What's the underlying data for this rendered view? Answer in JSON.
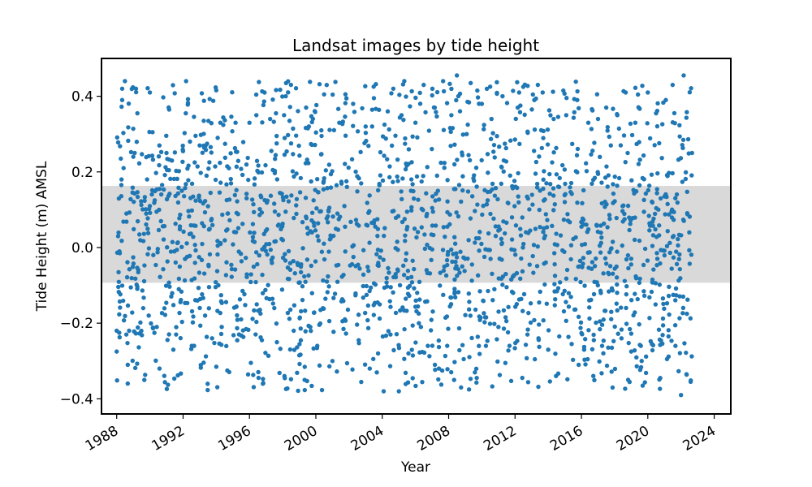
{
  "chart_data": {
    "type": "scatter",
    "title": "Landsat images by tide height",
    "xlabel": "Year",
    "ylabel": "Tide Height (m) AMSL",
    "xlim": [
      "1987-02-01",
      "2025-01-01"
    ],
    "ylim": [
      -0.44,
      0.5
    ],
    "x_ticks": [
      "1988",
      "1992",
      "1996",
      "2000",
      "2004",
      "2008",
      "2012",
      "2016",
      "2020",
      "2024"
    ],
    "y_ticks": [
      "−0.4",
      "−0.2",
      "0.0",
      "0.2",
      "0.4"
    ],
    "shaded_band": {
      "y_min": -0.093,
      "y_max": 0.163,
      "color": "#d9d9d9"
    },
    "series_color": "#1f77b4",
    "grid": false,
    "legend": "none",
    "date_range": [
      "1988-01-01",
      "2022-09-01"
    ],
    "series": [
      {
        "points": [
          [
            "1988-01-01",
            -0.22
          ],
          [
            "1988-01-01",
            -0.275
          ],
          [
            "1988-02-01",
            0.03
          ],
          [
            "1988-03-01",
            -0.01
          ],
          [
            "1988-04-01",
            0.235
          ],
          [
            "1988-05-01",
            0.42
          ],
          [
            "1988-05-01",
            0.39
          ],
          [
            "1988-06-01",
            0.21
          ],
          [
            "1988-07-01",
            0.44
          ],
          [
            "1988-08-01",
            -0.23
          ],
          [
            "1988-09-01",
            -0.31
          ],
          [
            "1988-10-01",
            -0.22
          ],
          [
            "1989-01-01",
            0.24
          ],
          [
            "1989-02-01",
            0.25
          ],
          [
            "1989-03-01",
            0.42
          ],
          [
            "1989-04-01",
            0.355
          ],
          [
            "1989-09-01",
            -0.35
          ],
          [
            "1989-11-01",
            0.18
          ],
          [
            "1990-01-01",
            0.41
          ],
          [
            "1990-03-01",
            0.305
          ],
          [
            "1990-06-01",
            -0.21
          ],
          [
            "1990-08-01",
            -0.32
          ],
          [
            "1991-01-01",
            0.25
          ],
          [
            "1991-03-01",
            0.365
          ],
          [
            "1991-05-01",
            0.23
          ],
          [
            "1991-06-01",
            -0.27
          ],
          [
            "1991-08-01",
            -0.23
          ],
          [
            "1992-03-01",
            0.355
          ],
          [
            "1992-06-01",
            0.28
          ],
          [
            "1992-09-01",
            -0.26
          ],
          [
            "1993-01-01",
            0.27
          ],
          [
            "1993-04-01",
            0.335
          ],
          [
            "1993-06-01",
            0.19
          ],
          [
            "1993-10-01",
            -0.24
          ],
          [
            "1994-02-01",
            0.29
          ],
          [
            "1994-04-01",
            0.33
          ],
          [
            "1994-05-01",
            -0.21
          ],
          [
            "1994-09-01",
            -0.325
          ],
          [
            "1995-03-01",
            0.33
          ],
          [
            "1995-07-01",
            -0.19
          ],
          [
            "1996-01-01",
            0.33
          ],
          [
            "1996-02-01",
            -0.305
          ],
          [
            "1996-06-01",
            0.35
          ],
          [
            "1996-10-01",
            -0.245
          ],
          [
            "1997-04-01",
            0.34
          ],
          [
            "1997-07-01",
            -0.16
          ],
          [
            "1998-02-01",
            0.35
          ],
          [
            "1998-06-01",
            0.335
          ],
          [
            "1998-09-01",
            -0.22
          ],
          [
            "1999-01-01",
            -0.285
          ],
          [
            "1999-06-01",
            0.37
          ],
          [
            "1999-09-01",
            -0.21
          ],
          [
            "2000-02-01",
            -0.26
          ],
          [
            "2000-05-01",
            0.31
          ],
          [
            "2000-07-01",
            0.405
          ],
          [
            "2001-01-01",
            -0.3
          ],
          [
            "2001-06-01",
            0.33
          ],
          [
            "2001-10-01",
            -0.19
          ],
          [
            "2002-04-01",
            0.38
          ],
          [
            "2002-08-01",
            -0.245
          ],
          [
            "2003-01-01",
            0.32
          ],
          [
            "2003-04-01",
            -0.32
          ],
          [
            "2003-07-01",
            0.395
          ],
          [
            "2003-10-01",
            -0.28
          ],
          [
            "2004-02-01",
            -0.38
          ],
          [
            "2004-05-01",
            0.36
          ],
          [
            "2004-07-01",
            -0.23
          ],
          [
            "2004-09-01",
            0.42
          ],
          [
            "2005-01-01",
            -0.38
          ],
          [
            "2005-03-01",
            0.35
          ],
          [
            "2005-05-01",
            0.44
          ],
          [
            "2005-08-01",
            -0.28
          ],
          [
            "2006-01-01",
            0.33
          ],
          [
            "2006-05-01",
            -0.21
          ],
          [
            "2006-07-01",
            0.43
          ],
          [
            "2006-10-01",
            -0.26
          ],
          [
            "2007-03-01",
            0.37
          ],
          [
            "2007-06-01",
            -0.32
          ],
          [
            "2007-09-01",
            0.44
          ],
          [
            "2007-12-01",
            -0.26
          ],
          [
            "2008-03-01",
            0.35
          ],
          [
            "2008-05-01",
            -0.35
          ],
          [
            "2008-07-01",
            0.455
          ],
          [
            "2008-10-01",
            -0.37
          ],
          [
            "2009-02-01",
            0.3
          ],
          [
            "2009-05-01",
            0.435
          ],
          [
            "2009-08-01",
            -0.33
          ],
          [
            "2010-01-01",
            0.38
          ],
          [
            "2010-04-01",
            -0.26
          ],
          [
            "2010-08-01",
            0.34
          ],
          [
            "2011-01-01",
            -0.21
          ],
          [
            "2011-04-01",
            0.4
          ],
          [
            "2011-09-01",
            -0.26
          ],
          [
            "2012-03-01",
            0.37
          ],
          [
            "2012-07-01",
            0.425
          ],
          [
            "2012-10-01",
            -0.23
          ],
          [
            "2013-03-01",
            0.39
          ],
          [
            "2013-06-01",
            -0.24
          ],
          [
            "2013-09-01",
            0.41
          ],
          [
            "2014-01-01",
            -0.27
          ],
          [
            "2014-05-01",
            0.34
          ],
          [
            "2014-09-01",
            -0.235
          ],
          [
            "2015-02-01",
            0.35
          ],
          [
            "2015-06-01",
            -0.255
          ],
          [
            "2015-10-01",
            0.39
          ],
          [
            "2016-03-01",
            -0.27
          ],
          [
            "2016-06-01",
            0.33
          ],
          [
            "2016-10-01",
            -0.245
          ],
          [
            "2017-01-01",
            0.34
          ],
          [
            "2017-04-01",
            -0.26
          ],
          [
            "2017-07-01",
            0.37
          ],
          [
            "2017-11-01",
            -0.265
          ],
          [
            "2018-03-01",
            0.35
          ],
          [
            "2018-06-01",
            -0.24
          ],
          [
            "2018-09-01",
            0.41
          ],
          [
            "2019-01-01",
            -0.275
          ],
          [
            "2019-04-01",
            0.33
          ],
          [
            "2019-08-01",
            -0.26
          ],
          [
            "2020-01-01",
            0.41
          ],
          [
            "2020-04-01",
            -0.255
          ],
          [
            "2020-07-01",
            0.355
          ],
          [
            "2020-10-01",
            -0.345
          ],
          [
            "2021-02-01",
            0.39
          ],
          [
            "2021-04-01",
            -0.235
          ],
          [
            "2021-07-01",
            0.43
          ],
          [
            "2021-09-01",
            -0.26
          ],
          [
            "2022-01-01",
            -0.39
          ],
          [
            "2022-03-01",
            0.455
          ],
          [
            "2022-05-01",
            -0.335
          ],
          [
            "2022-08-01",
            -0.355
          ],
          [
            "2022-09-01",
            0.25
          ]
        ]
      }
    ]
  }
}
